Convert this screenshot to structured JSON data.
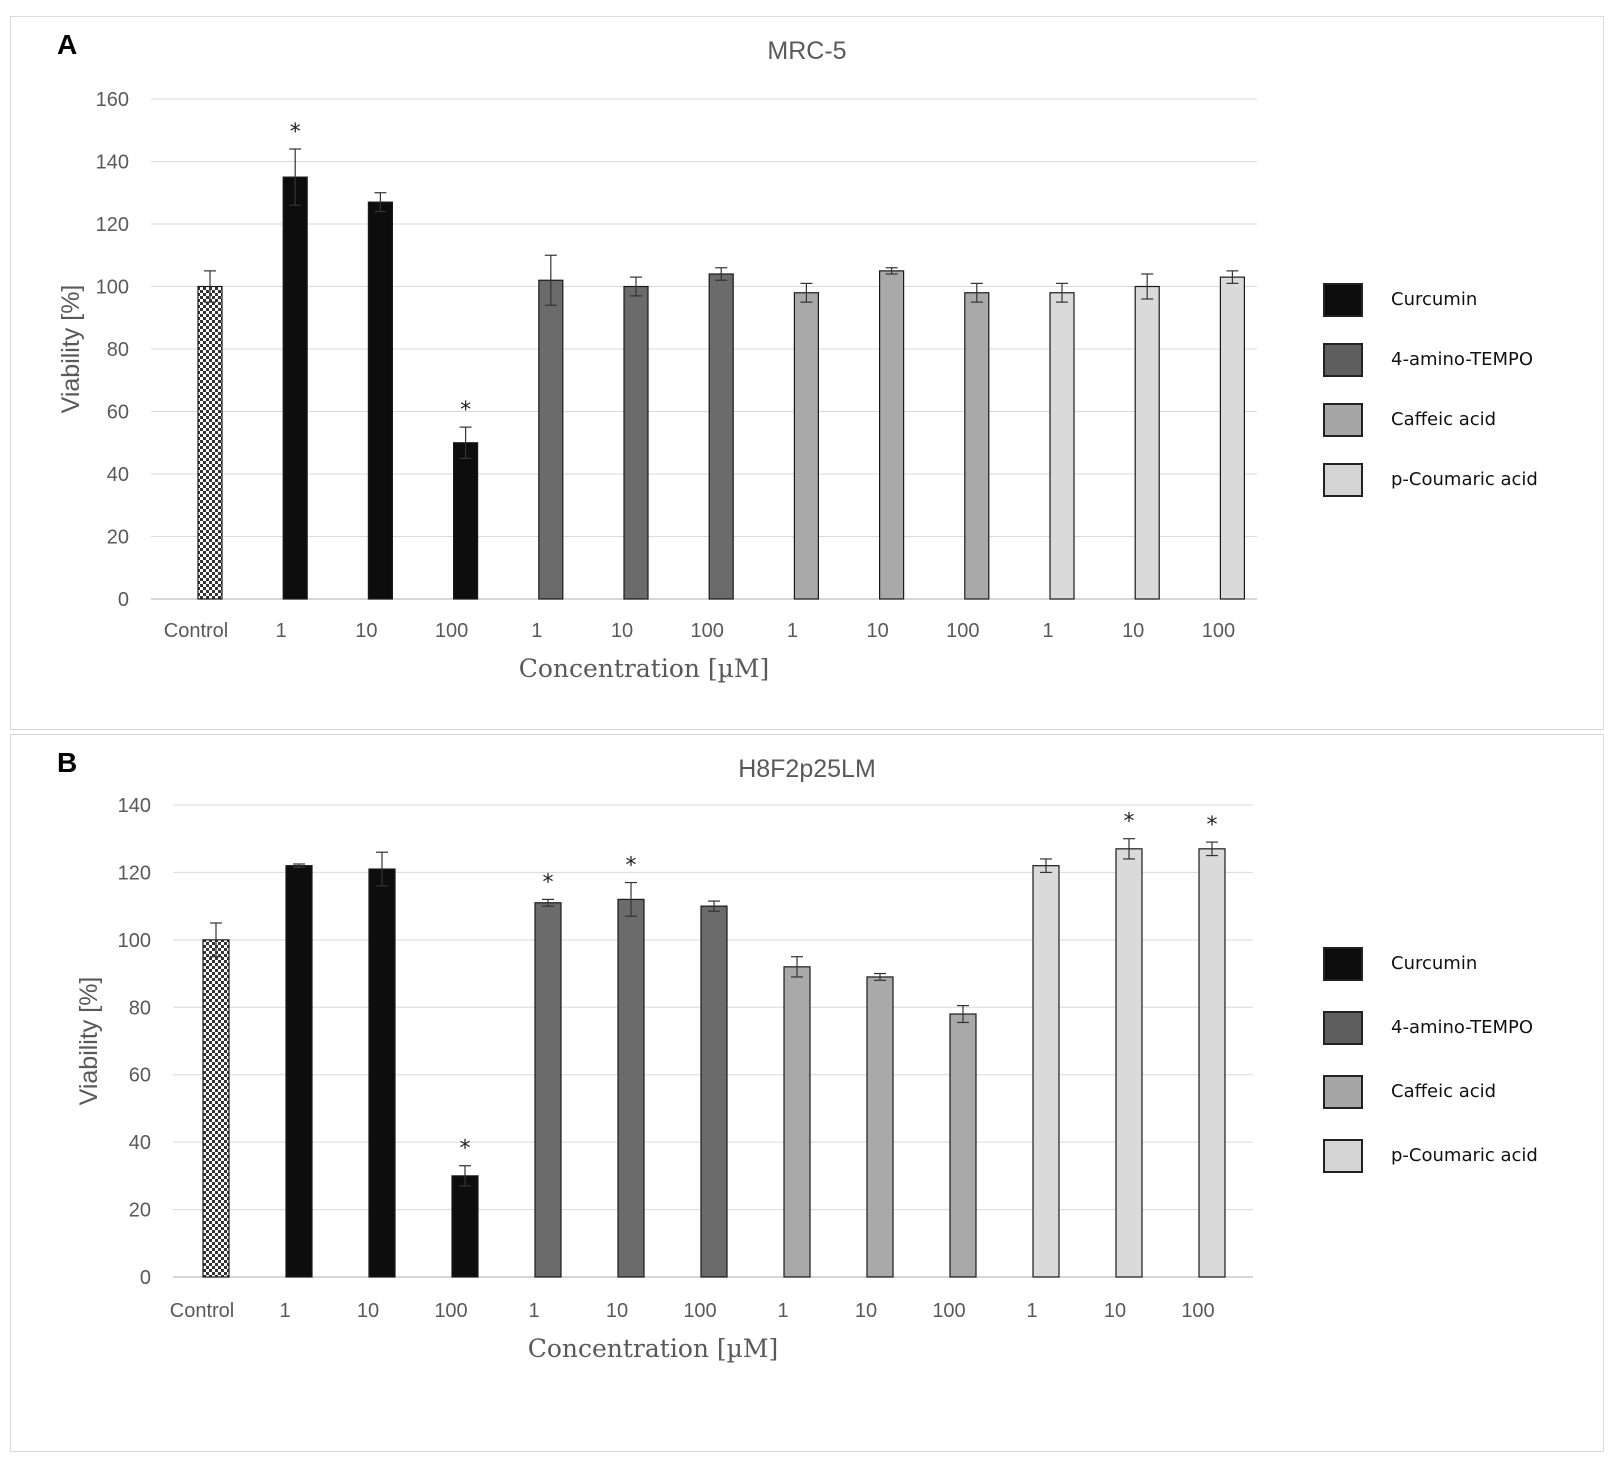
{
  "colors": {
    "curcumin": "#0d0d0d",
    "tempo": "#6b6b6b",
    "caffeic": "#a9a9a9",
    "coumaric": "#dadada",
    "control": "checkered"
  },
  "legend": [
    {
      "label": "Curcumin",
      "color": "#0d0d0d"
    },
    {
      "label": "4-amino-TEMPO",
      "color": "#5e5e5e"
    },
    {
      "label": "Caffeic acid",
      "color": "#a6a6a6"
    },
    {
      "label": "p-Coumaric acid",
      "color": "#d4d4d4"
    }
  ],
  "chart_data": [
    {
      "panel": "A",
      "type": "bar",
      "title": "MRC-5",
      "xlabel": "Concentration [µM]",
      "ylabel": "Viability [%]",
      "ylim": [
        0,
        160
      ],
      "yticks": [
        0,
        20,
        40,
        60,
        80,
        100,
        120,
        140,
        160
      ],
      "categories": [
        "Control",
        "1",
        "10",
        "100",
        "1",
        "10",
        "100",
        "1",
        "10",
        "100",
        "1",
        "10",
        "100"
      ],
      "groups": [
        "control",
        "curcumin",
        "curcumin",
        "curcumin",
        "tempo",
        "tempo",
        "tempo",
        "caffeic",
        "caffeic",
        "caffeic",
        "coumaric",
        "coumaric",
        "coumaric"
      ],
      "values": [
        100,
        135,
        127,
        50,
        102,
        100,
        104,
        98,
        105,
        98,
        98,
        100,
        103
      ],
      "errors": [
        5,
        9,
        3,
        5,
        8,
        3,
        2,
        3,
        1,
        3,
        3,
        4,
        2
      ],
      "significant": [
        false,
        true,
        false,
        true,
        false,
        false,
        false,
        false,
        false,
        false,
        false,
        false,
        false
      ],
      "marker": "*",
      "grid": true,
      "legend_position": "right"
    },
    {
      "panel": "B",
      "type": "bar",
      "title": "H8F2p25LM",
      "xlabel": "Concentration [µM]",
      "ylabel": "Viability [%]",
      "ylim": [
        0,
        140
      ],
      "yticks": [
        0,
        20,
        40,
        60,
        80,
        100,
        120,
        140
      ],
      "categories": [
        "Control",
        "1",
        "10",
        "100",
        "1",
        "10",
        "100",
        "1",
        "10",
        "100",
        "1",
        "10",
        "100"
      ],
      "groups": [
        "control",
        "curcumin",
        "curcumin",
        "curcumin",
        "tempo",
        "tempo",
        "tempo",
        "caffeic",
        "caffeic",
        "caffeic",
        "coumaric",
        "coumaric",
        "coumaric"
      ],
      "values": [
        100,
        122,
        121,
        30,
        111,
        112,
        110,
        92,
        89,
        78,
        122,
        127,
        127
      ],
      "errors": [
        5,
        0.5,
        5,
        3,
        1,
        5,
        1.5,
        3,
        1,
        2.5,
        2,
        3,
        2
      ],
      "significant": [
        false,
        false,
        false,
        true,
        true,
        true,
        false,
        false,
        false,
        false,
        false,
        true,
        true
      ],
      "marker": "*",
      "grid": true,
      "legend_position": "right"
    }
  ]
}
